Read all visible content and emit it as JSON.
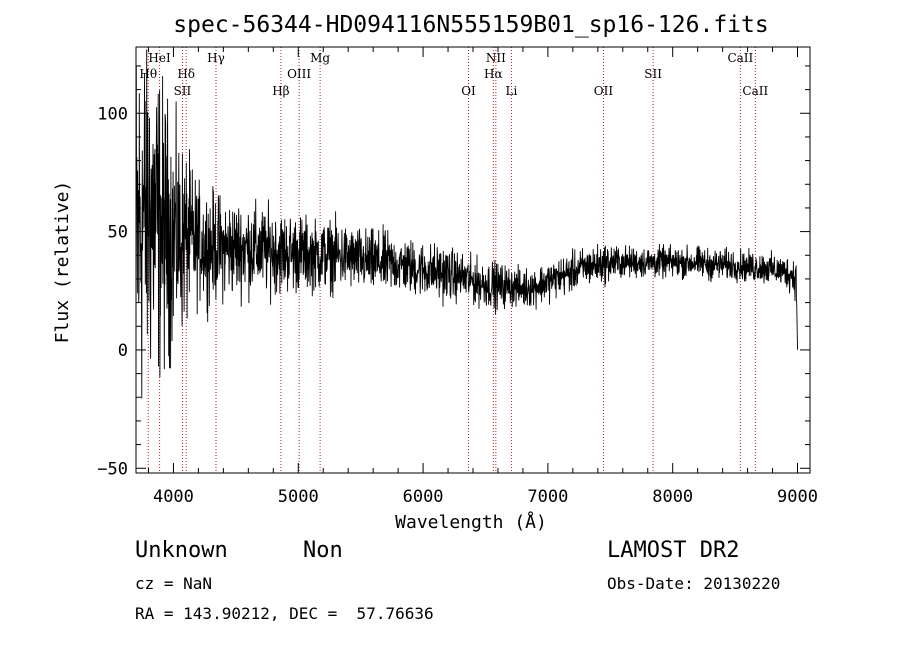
{
  "chart_data": {
    "type": "line",
    "title": "spec-56344-HD094116N555159B01_sp16-126.fits",
    "xlabel": "Wavelength (Å)",
    "ylabel": "Flux (relative)",
    "xlim": [
      3700,
      9100
    ],
    "ylim": [
      -52,
      128
    ],
    "x_ticks": [
      4000,
      5000,
      6000,
      7000,
      8000,
      9000
    ],
    "y_ticks": [
      -50,
      0,
      50,
      100
    ],
    "x_tick_labels": [
      "4000",
      "5000",
      "6000",
      "7000",
      "8000",
      "9000"
    ],
    "y_tick_labels": [
      "−50",
      "0",
      "50",
      "100"
    ],
    "series": [
      {
        "x": [
          3700,
          3750,
          3800,
          3850,
          3900,
          3950,
          4000,
          4050,
          4100,
          4200,
          4300,
          4400,
          4500,
          4600,
          4700,
          4800,
          4900,
          5000,
          5100,
          5200,
          5300,
          5400,
          5500,
          5600,
          5700,
          5800,
          5900,
          6000,
          6100,
          6200,
          6300,
          6400,
          6500,
          6600,
          6700,
          6800,
          6900,
          7000,
          7100,
          7200,
          7300,
          7400,
          7500,
          7600,
          7700,
          7800,
          7900,
          8000,
          8100,
          8200,
          8300,
          8400,
          8500,
          8600,
          8700,
          8800,
          8900,
          8950,
          8990,
          9000
        ],
        "values": [
          45,
          55,
          60,
          55,
          52,
          50,
          48,
          47,
          47,
          45,
          44,
          43,
          43,
          43,
          42,
          42,
          41,
          41,
          40,
          40,
          40,
          39,
          38,
          37,
          37,
          36,
          35,
          34,
          33,
          32,
          31,
          29,
          28,
          27,
          27,
          26,
          27,
          29,
          31,
          33,
          35,
          36,
          37,
          37,
          37,
          37,
          37,
          37,
          37,
          37,
          36,
          36,
          36,
          35,
          35,
          34,
          33,
          32,
          30,
          0
        ],
        "noise": [
          55,
          50,
          45,
          42,
          38,
          34,
          28,
          25,
          22,
          15,
          14,
          13,
          12,
          12,
          11,
          11,
          10,
          10,
          9,
          9,
          9,
          8,
          8,
          8,
          8,
          7,
          7,
          7,
          7,
          7,
          6,
          6,
          6,
          6,
          5,
          5,
          5,
          5,
          5,
          5,
          5,
          5,
          5,
          4,
          4,
          4,
          4,
          4,
          4,
          4,
          4,
          4,
          4,
          4,
          4,
          4,
          4,
          5,
          5,
          0
        ]
      }
    ],
    "line_markers": [
      {
        "label": "Hθ",
        "x": 3798,
        "row": 2
      },
      {
        "label": "HeI",
        "x": 3889,
        "row": 1
      },
      {
        "label": "Hδ",
        "x": 4102,
        "row": 2
      },
      {
        "label": "SII",
        "x": 4072,
        "row": 3
      },
      {
        "label": "Hγ",
        "x": 4341,
        "row": 1
      },
      {
        "label": "Hβ",
        "x": 4861,
        "row": 3
      },
      {
        "label": "OIII",
        "x": 5007,
        "row": 2
      },
      {
        "label": "Mg",
        "x": 5175,
        "row": 1
      },
      {
        "label": "OI",
        "x": 6364,
        "row": 3
      },
      {
        "label": "NII",
        "x": 6583,
        "row": 1
      },
      {
        "label": "Hα",
        "x": 6563,
        "row": 2
      },
      {
        "label": "Li",
        "x": 6708,
        "row": 3
      },
      {
        "label": "OII",
        "x": 7445,
        "row": 3
      },
      {
        "label": "SII",
        "x": 7843,
        "row": 2
      },
      {
        "label": "CaII",
        "x": 8542,
        "row": 1
      },
      {
        "label": "CaII",
        "x": 8662,
        "row": 3
      }
    ],
    "grid": false,
    "line_color": "#000000",
    "marker_color": "#b22222"
  },
  "info": {
    "class_label": "Unknown",
    "subclass_label": "Non",
    "survey": "LAMOST DR2",
    "cz": "cz = NaN",
    "obs_date": "Obs-Date: 20130220",
    "coords": "RA = 143.90212, DEC =  57.76636"
  }
}
